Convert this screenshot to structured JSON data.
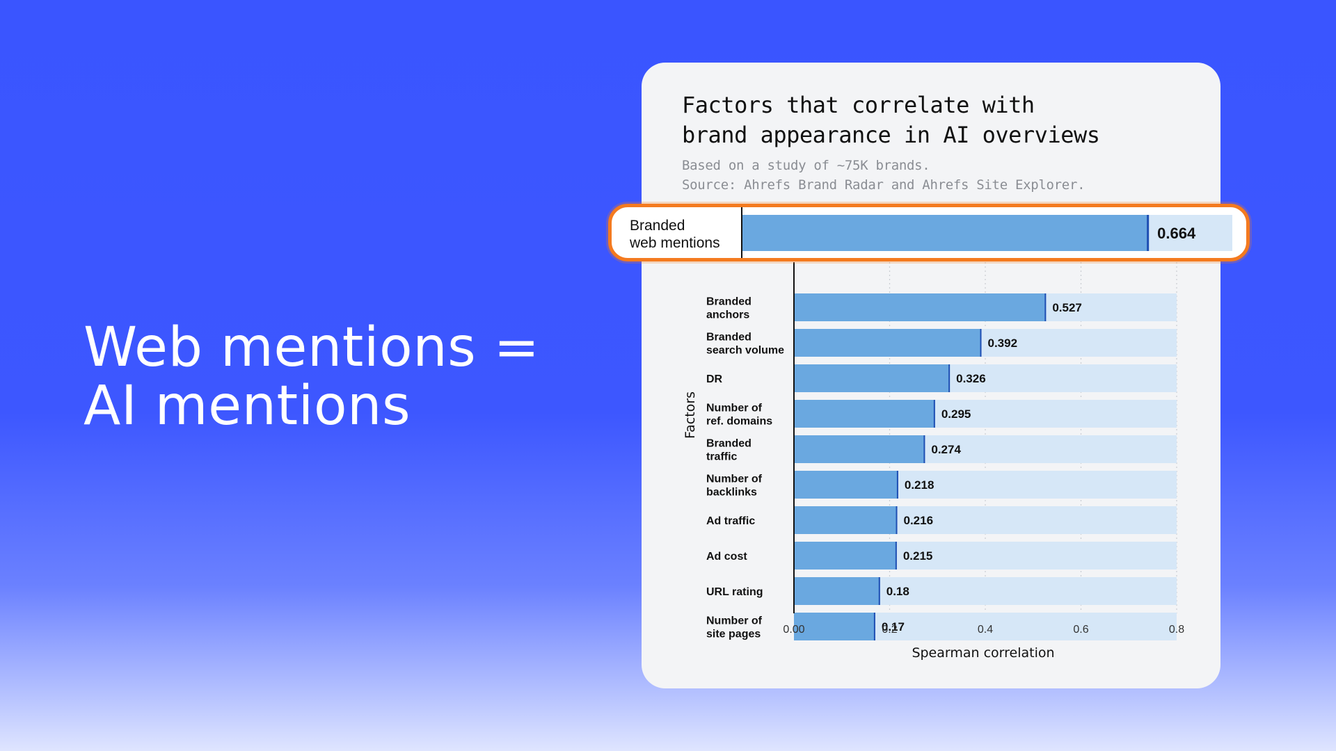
{
  "headline": {
    "line1": "Web mentions =",
    "line2": "AI mentions"
  },
  "card": {
    "title_line1": "Factors that correlate with",
    "title_line2": "brand appearance in AI overviews",
    "subtitle_line1": "Based on a study of ~75K brands.",
    "subtitle_line2": "Source: Ahrefs Brand Radar and Ahrefs Site Explorer."
  },
  "colors": {
    "background": "#3d57ff",
    "bar": "#6aa8e0",
    "bar_track": "#d6e7f7",
    "bar_edge": "#1f4fb3",
    "highlight_border": "#f47a1f"
  },
  "chart_data": {
    "type": "bar",
    "orientation": "horizontal",
    "categories": [
      "Branded\nweb mentions",
      "Branded\nanchors",
      "Branded\nsearch volume",
      "DR",
      "Number of\nref. domains",
      "Branded\ntraffic",
      "Number of\nbacklinks",
      "Ad traffic",
      "Ad cost",
      "URL rating",
      "Number of\nsite pages"
    ],
    "values": [
      0.664,
      0.527,
      0.392,
      0.326,
      0.295,
      0.274,
      0.218,
      0.216,
      0.215,
      0.18,
      0.17
    ],
    "value_labels": [
      "0.664",
      "0.527",
      "0.392",
      "0.326",
      "0.295",
      "0.274",
      "0.218",
      "0.216",
      "0.215",
      "0.18",
      "0.17"
    ],
    "highlighted": "Branded\nweb mentions",
    "xlabel": "Spearman correlation",
    "ylabel": "Factors",
    "xlim": [
      0,
      0.8
    ],
    "xticks": [
      "0.00",
      "0.2",
      "0.4",
      "0.6",
      "0.8"
    ],
    "grid": "vertical dotted"
  }
}
